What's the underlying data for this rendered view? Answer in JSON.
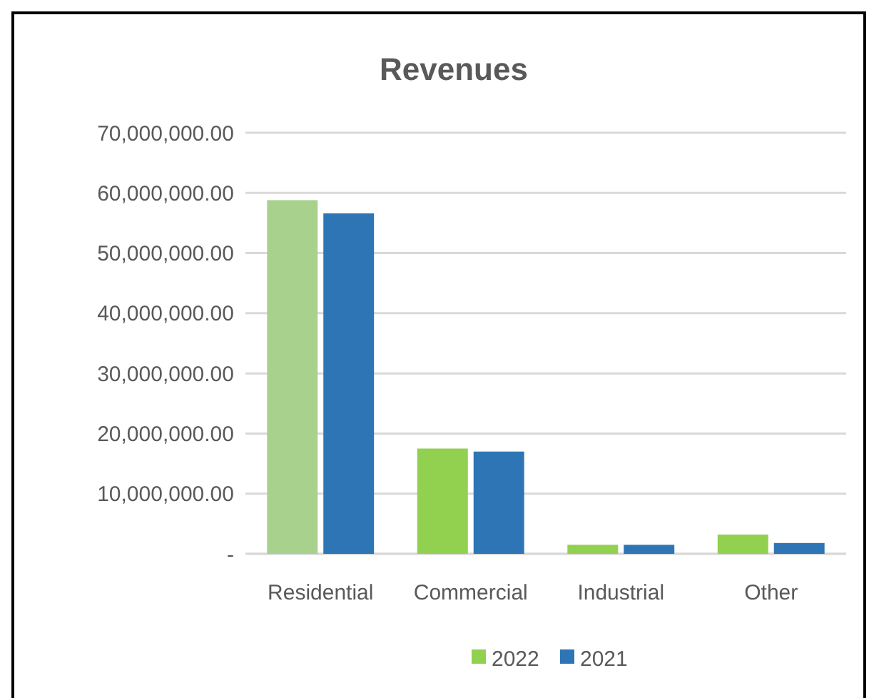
{
  "chart_data": {
    "type": "bar",
    "title": "Revenues",
    "categories": [
      "Residential",
      "Commercial",
      "Industrial",
      "Other"
    ],
    "series": [
      {
        "name": "2022",
        "color": "#92d050",
        "colors": [
          "#a9d18e",
          "#92d050",
          "#92d050",
          "#92d050"
        ],
        "values": [
          58800000,
          17500000,
          1500000,
          3200000
        ]
      },
      {
        "name": "2021",
        "color": "#2e75b6",
        "values": [
          56600000,
          17000000,
          1500000,
          1800000
        ]
      }
    ],
    "ylim": [
      0,
      70000000
    ],
    "yticks": [
      {
        "value": 0,
        "label": "-"
      },
      {
        "value": 10000000,
        "label": "10,000,000.00"
      },
      {
        "value": 20000000,
        "label": "20,000,000.00"
      },
      {
        "value": 30000000,
        "label": "30,000,000.00"
      },
      {
        "value": 40000000,
        "label": "40,000,000.00"
      },
      {
        "value": 50000000,
        "label": "50,000,000.00"
      },
      {
        "value": 60000000,
        "label": "60,000,000.00"
      },
      {
        "value": 70000000,
        "label": "70,000,000.00"
      }
    ],
    "grid": "y",
    "legend": "bottom"
  }
}
